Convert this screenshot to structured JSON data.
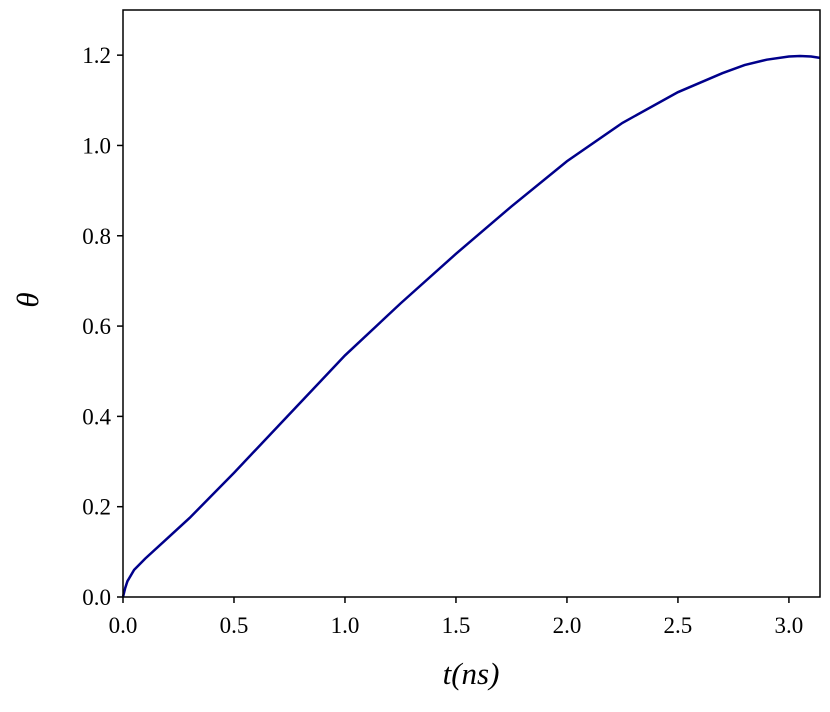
{
  "chart_data": {
    "type": "line",
    "x_label": "t(ns)",
    "y_label": "θ",
    "x": [
      0,
      0.01,
      0.02,
      0.05,
      0.1,
      0.2,
      0.3,
      0.5,
      0.75,
      1.0,
      1.25,
      1.5,
      1.75,
      2.0,
      2.25,
      2.5,
      2.7,
      2.8,
      2.9,
      3.0,
      3.05,
      3.1,
      3.14
    ],
    "series": [
      {
        "name": "θ",
        "color": "#00008b",
        "values": [
          0,
          0.02,
          0.035,
          0.06,
          0.085,
          0.13,
          0.175,
          0.275,
          0.405,
          0.535,
          0.65,
          0.76,
          0.865,
          0.965,
          1.05,
          1.118,
          1.16,
          1.178,
          1.19,
          1.197,
          1.198,
          1.197,
          1.194
        ]
      }
    ],
    "xlim": [
      0,
      3.14
    ],
    "ylim": [
      0,
      1.3
    ],
    "xticks": [
      {
        "value": 0,
        "label": "0.0"
      },
      0.5,
      {
        "value": 1,
        "label": "1.0"
      },
      1.5,
      {
        "value": 2,
        "label": "2.0"
      },
      2.5,
      {
        "value": 3,
        "label": "3.0"
      }
    ],
    "yticks": [
      {
        "value": 0,
        "label": "0.0"
      },
      0.2,
      0.4,
      0.6,
      0.8,
      {
        "value": 1,
        "label": "1.0"
      },
      1.2
    ],
    "grid": false
  }
}
